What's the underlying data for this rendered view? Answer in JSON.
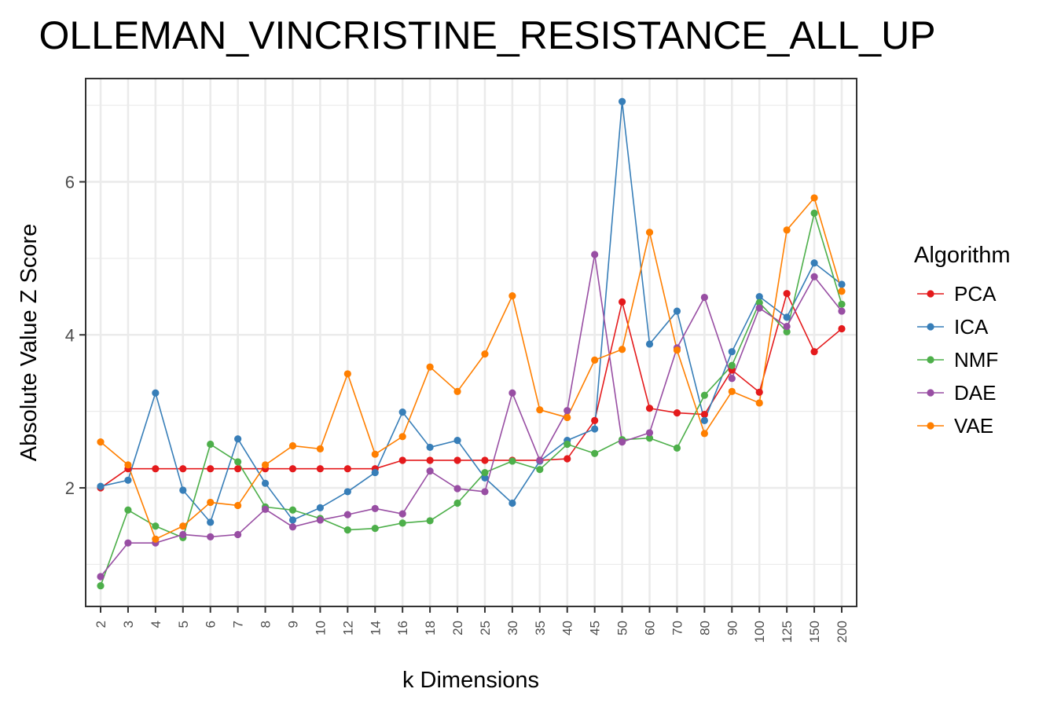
{
  "chart_data": {
    "type": "line",
    "title": "OLLEMAN_VINCRISTINE_RESISTANCE_ALL_UP",
    "xlabel": "k Dimensions",
    "ylabel": "Absolute Value Z Score",
    "categories": [
      "2",
      "3",
      "4",
      "5",
      "6",
      "7",
      "8",
      "9",
      "10",
      "12",
      "14",
      "16",
      "18",
      "20",
      "25",
      "30",
      "35",
      "40",
      "45",
      "50",
      "60",
      "70",
      "80",
      "90",
      "100",
      "125",
      "150",
      "200"
    ],
    "ylim": [
      0.45,
      7.35
    ],
    "yticks": [
      2,
      4,
      6
    ],
    "grid": true,
    "legend": {
      "title": "Algorithm",
      "position": "right"
    },
    "series": [
      {
        "name": "PCA",
        "color": "#E41A1C",
        "values": [
          2.0,
          2.25,
          2.25,
          2.25,
          2.25,
          2.25,
          2.25,
          2.25,
          2.25,
          2.25,
          2.25,
          2.36,
          2.36,
          2.36,
          2.36,
          2.36,
          2.36,
          2.38,
          2.88,
          4.43,
          3.04,
          2.98,
          2.96,
          3.54,
          3.25,
          4.54,
          3.78,
          4.08
        ]
      },
      {
        "name": "ICA",
        "color": "#377EB8",
        "values": [
          2.02,
          2.1,
          3.24,
          1.97,
          1.55,
          2.64,
          2.06,
          1.58,
          1.74,
          1.95,
          2.2,
          2.99,
          2.53,
          2.62,
          2.13,
          1.8,
          2.35,
          2.62,
          2.77,
          7.05,
          3.88,
          4.31,
          2.88,
          3.78,
          4.5,
          4.23,
          4.94,
          4.66
        ]
      },
      {
        "name": "NMF",
        "color": "#4DAF4A",
        "values": [
          0.72,
          1.71,
          1.5,
          1.35,
          2.57,
          2.34,
          1.75,
          1.71,
          1.6,
          1.45,
          1.47,
          1.54,
          1.57,
          1.8,
          2.2,
          2.35,
          2.24,
          2.57,
          2.45,
          2.63,
          2.65,
          2.52,
          3.21,
          3.6,
          4.42,
          4.04,
          5.59,
          4.4
        ]
      },
      {
        "name": "DAE",
        "color": "#984EA3",
        "values": [
          0.84,
          1.28,
          1.28,
          1.39,
          1.36,
          1.39,
          1.72,
          1.49,
          1.58,
          1.65,
          1.73,
          1.66,
          2.22,
          1.99,
          1.95,
          3.24,
          2.36,
          3.01,
          5.05,
          2.6,
          2.72,
          3.83,
          4.49,
          3.43,
          4.35,
          4.11,
          4.76,
          4.31
        ]
      },
      {
        "name": "VAE",
        "color": "#FF7F00",
        "values": [
          2.6,
          2.3,
          1.33,
          1.5,
          1.81,
          1.77,
          2.3,
          2.55,
          2.51,
          3.49,
          2.44,
          2.67,
          3.58,
          3.26,
          3.75,
          4.51,
          3.02,
          2.92,
          3.67,
          3.81,
          5.34,
          3.8,
          2.71,
          3.26,
          3.11,
          5.37,
          5.79,
          4.57
        ]
      }
    ]
  }
}
